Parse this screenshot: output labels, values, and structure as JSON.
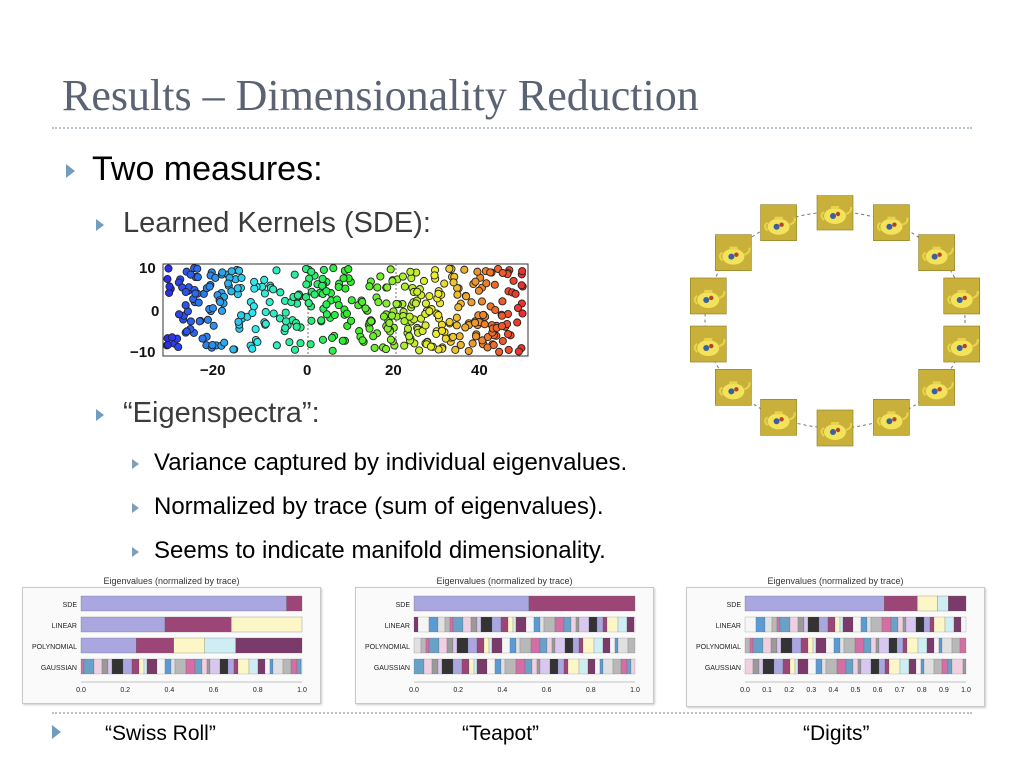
{
  "title": "Results – Dimensionality Reduction",
  "bullets": {
    "l1": "Two measures:",
    "l2a": "Learned Kernels (SDE):",
    "l2b": "“Eigenspectra”:",
    "l3": [
      "Variance captured by individual eigenvalues.",
      "Normalized by trace (sum of eigenvalues).",
      "Seems to indicate manifold dimensionality."
    ]
  },
  "scatter": {
    "y_ticks": [
      "10",
      "0",
      "−10"
    ],
    "x_ticks": [
      "−20",
      "0",
      "20",
      "40"
    ]
  },
  "teapot_ring": {
    "count": 14,
    "icon": "teapot-image"
  },
  "eigen_charts": [
    {
      "title": "Eigenvalues (normalized by trace)",
      "rows": [
        "SDE",
        "LINEAR",
        "POLYNOMIAL",
        "GAUSSIAN"
      ],
      "ticks": [
        "0.0",
        "0.2",
        "0.4",
        "0.6",
        "0.8",
        "1.0"
      ],
      "caption": "“Swiss Roll”"
    },
    {
      "title": "Eigenvalues (normalized by trace)",
      "rows": [
        "SDE",
        "LINEAR",
        "POLYNOMIAL",
        "GAUSSIAN"
      ],
      "ticks": [
        "0.0",
        "0.2",
        "0.4",
        "0.6",
        "0.8",
        "1.0"
      ],
      "caption": "“Teapot”"
    },
    {
      "title": "Eigenvalues (normalized by trace)",
      "rows": [
        "SDE",
        "LINEAR",
        "POLYNOMIAL",
        "GAUSSIAN"
      ],
      "ticks": [
        "0.0",
        "0.1",
        "0.2",
        "0.3",
        "0.4",
        "0.5",
        "0.6",
        "0.7",
        "0.8",
        "0.9",
        "1.0"
      ],
      "caption": "“Digits”"
    }
  ],
  "colors": {
    "title": "#5b6273",
    "bullet": "#6f9cbf",
    "sde_bar": "#a9a6e0",
    "accent_bar": "#9c4577",
    "cream_bar": "#fdf7c8"
  }
}
